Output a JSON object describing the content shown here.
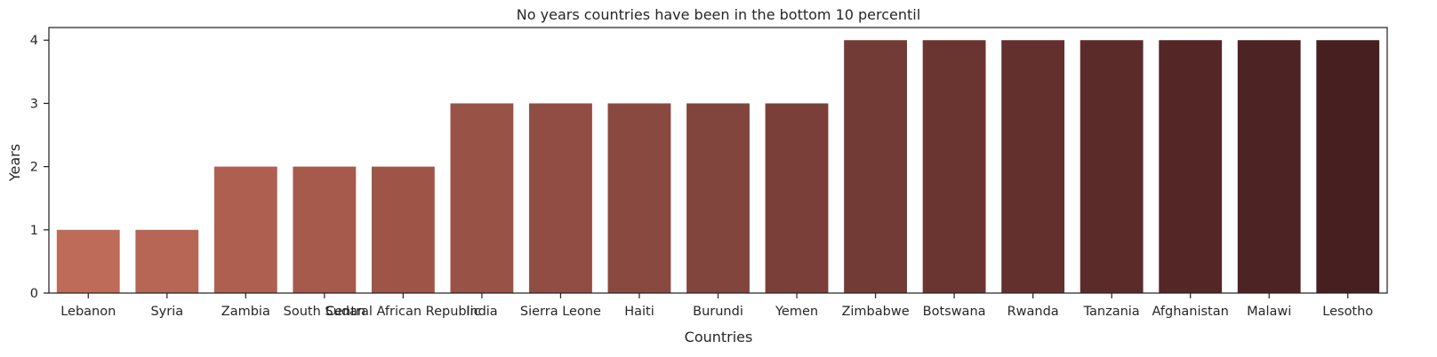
{
  "chart_data": {
    "type": "bar",
    "title": "No years countries have been in the bottom 10 percentil",
    "xlabel": "Countries",
    "ylabel": "Years",
    "categories": [
      "Lebanon",
      "Syria",
      "Zambia",
      "South Sudan",
      "Central African Republic",
      "India",
      "Sierra Leone",
      "Haiti",
      "Burundi",
      "Yemen",
      "Zimbabwe",
      "Botswana",
      "Rwanda",
      "Tanzania",
      "Afghanistan",
      "Malawi",
      "Lesotho"
    ],
    "values": [
      1,
      1,
      2,
      2,
      2,
      3,
      3,
      3,
      3,
      3,
      4,
      4,
      4,
      4,
      4,
      4,
      4
    ],
    "colors": [
      "#bf6b5a",
      "#b76554",
      "#af5f50",
      "#a65a4c",
      "#9e5548",
      "#985246",
      "#914d43",
      "#894941",
      "#81453e",
      "#7a3f39",
      "#733b36",
      "#6a3431",
      "#63302e",
      "#5b2b2a",
      "#542626",
      "#4d2324",
      "#471f21"
    ],
    "yticks": [
      0,
      1,
      2,
      3,
      4
    ],
    "ylim": [
      0,
      4.2
    ],
    "grid": false,
    "legend": "none"
  }
}
